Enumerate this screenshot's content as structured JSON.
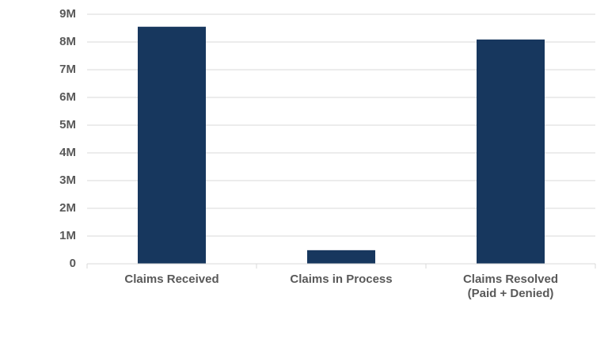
{
  "chart_data": {
    "type": "bar",
    "categories": [
      "Claims Received",
      "Claims in Process",
      "Claims Resolved (Paid + Denied)"
    ],
    "values": [
      8550000,
      490000,
      8090000
    ],
    "color": "#17375e",
    "ylim": [
      0,
      9000000
    ],
    "yticks": [
      0,
      {
        "value": 1000000,
        "label": "1M"
      },
      {
        "value": 2000000,
        "label": "2M"
      },
      {
        "value": 3000000,
        "label": "3M"
      },
      {
        "value": 4000000,
        "label": "4M"
      },
      {
        "value": 5000000,
        "label": "5M"
      },
      {
        "value": 6000000,
        "label": "6M"
      },
      {
        "value": 7000000,
        "label": "7M"
      },
      {
        "value": 8000000,
        "label": "8M"
      },
      {
        "value": 9000000,
        "label": "9M"
      }
    ],
    "grid": true
  }
}
